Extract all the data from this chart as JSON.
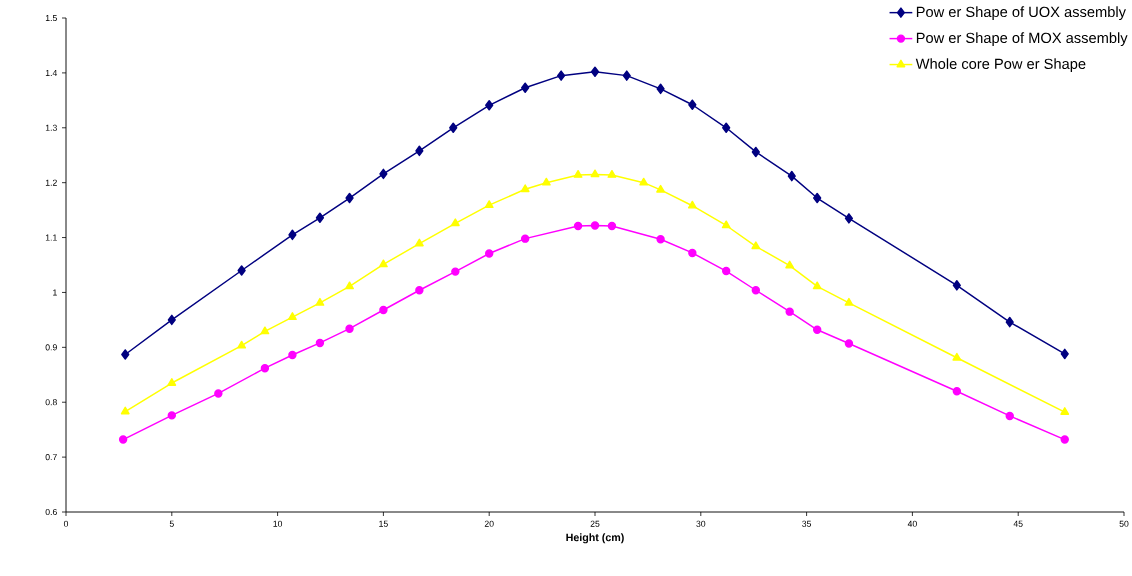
{
  "chart_data": {
    "type": "line",
    "xlabel": "Height (cm)",
    "series": [
      {
        "name": "Pow er Shape of UOX assembly",
        "color": "#000080",
        "marker": "diamond",
        "x": [
          2.8,
          5,
          8.3,
          10.7,
          12,
          13.4,
          15,
          16.7,
          18.3,
          20,
          21.7,
          23.4,
          25,
          26.5,
          28.1,
          29.6,
          31.2,
          32.6,
          34.3,
          35.5,
          37,
          42.1,
          44.6,
          47.2
        ],
        "values": [
          0.887,
          0.95,
          1.04,
          1.105,
          1.136,
          1.172,
          1.216,
          1.258,
          1.3,
          1.341,
          1.373,
          1.395,
          1.402,
          1.395,
          1.371,
          1.342,
          1.3,
          1.256,
          1.212,
          1.172,
          1.135,
          1.013,
          0.946,
          0.888
        ]
      },
      {
        "name": "Pow er Shape of MOX assembly",
        "color": "#ff00ff",
        "marker": "circle",
        "x": [
          2.7,
          5,
          7.2,
          9.4,
          10.7,
          12,
          13.4,
          15,
          16.7,
          18.4,
          20,
          21.7,
          24.2,
          25,
          25.8,
          28.1,
          29.6,
          31.2,
          32.6,
          34.2,
          35.5,
          37,
          42.1,
          44.6,
          47.2
        ],
        "values": [
          0.732,
          0.776,
          0.816,
          0.862,
          0.886,
          0.908,
          0.934,
          0.968,
          1.004,
          1.038,
          1.071,
          1.098,
          1.121,
          1.122,
          1.121,
          1.097,
          1.072,
          1.039,
          1.004,
          0.965,
          0.932,
          0.907,
          0.82,
          0.775,
          0.732
        ]
      },
      {
        "name": "Whole core Pow er Shape",
        "color": "#ffff00",
        "marker": "triangle",
        "x": [
          2.8,
          5,
          8.3,
          9.4,
          10.7,
          12,
          13.4,
          15,
          16.7,
          18.4,
          20,
          21.7,
          22.7,
          24.2,
          25,
          25.8,
          27.3,
          28.1,
          29.6,
          31.2,
          32.6,
          34.2,
          35.5,
          37,
          42.1,
          47.2
        ],
        "values": [
          0.783,
          0.835,
          0.903,
          0.929,
          0.955,
          0.981,
          1.011,
          1.051,
          1.089,
          1.126,
          1.159,
          1.188,
          1.2,
          1.214,
          1.215,
          1.214,
          1.2,
          1.187,
          1.158,
          1.122,
          1.084,
          1.049,
          1.011,
          0.981,
          0.881,
          0.782
        ]
      }
    ],
    "xlim": [
      0,
      50
    ],
    "xticks": [
      0,
      5,
      10,
      15,
      20,
      25,
      30,
      35,
      40,
      45,
      50
    ],
    "ylim": [
      0.6,
      1.5
    ],
    "yticks": [
      0.6,
      0.7,
      0.8,
      0.9,
      1,
      1.1,
      1.2,
      1.3,
      1.4,
      1.5
    ],
    "grid": false,
    "legend": "top right",
    "line_style": "solid"
  }
}
